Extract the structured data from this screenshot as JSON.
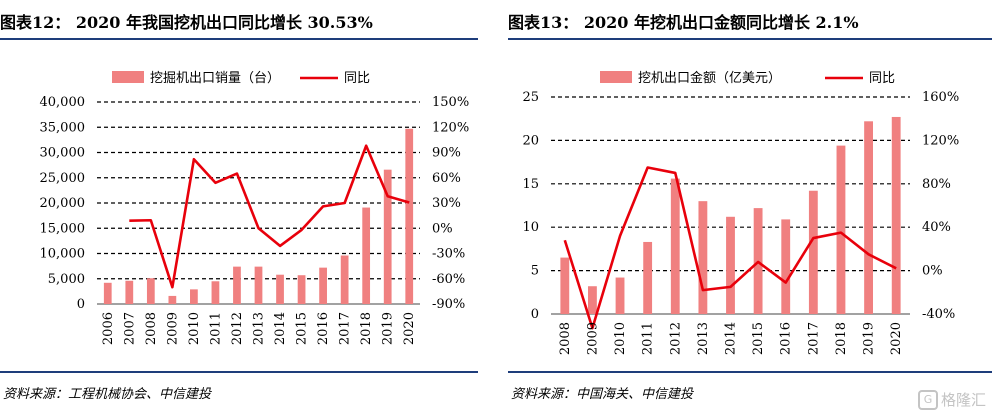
{
  "left": {
    "title": "图表12： 2020 年我国挖机出口同比增长 30.53%",
    "source": "资料来源：工程机械协会、中信建投",
    "chart_data": {
      "type": "bar",
      "categories": [
        "2006",
        "2007",
        "2008",
        "2009",
        "2010",
        "2011",
        "2012",
        "2013",
        "2014",
        "2015",
        "2016",
        "2017",
        "2018",
        "2019",
        "2020"
      ],
      "series": [
        {
          "name": "挖掘机出口销量（台）",
          "type": "bar",
          "axis": "left",
          "color": "#f08080",
          "values": [
            4200,
            4600,
            5100,
            1600,
            2900,
            4500,
            7400,
            7400,
            5800,
            5700,
            7200,
            9600,
            19100,
            26600,
            34700
          ]
        },
        {
          "name": "同比",
          "type": "line",
          "axis": "right",
          "color": "#e8000b",
          "values": [
            null,
            9,
            9.5,
            -70,
            82,
            54,
            65,
            0,
            -21,
            -2,
            26,
            30,
            98,
            38,
            30.53
          ]
        }
      ],
      "left_axis": {
        "min": 0,
        "max": 40000,
        "ticks": [
          "0",
          "5,000",
          "10,000",
          "15,000",
          "20,000",
          "25,000",
          "30,000",
          "35,000",
          "40,000"
        ]
      },
      "right_axis": {
        "min": -90,
        "max": 150,
        "ticks": [
          "-90%",
          "-60%",
          "-30%",
          "0%",
          "30%",
          "60%",
          "90%",
          "120%",
          "150%"
        ]
      },
      "grid": true,
      "legend": "top"
    }
  },
  "right": {
    "title": "图表13： 2020 年挖机出口金额同比增长 2.1%",
    "source": "资料来源：中国海关、中信建投",
    "chart_data": {
      "type": "bar",
      "categories": [
        "2008",
        "2009",
        "2010",
        "2011",
        "2012",
        "2013",
        "2014",
        "2015",
        "2016",
        "2017",
        "2018",
        "2019",
        "2020"
      ],
      "series": [
        {
          "name": "挖机出口金额（亿美元）",
          "type": "bar",
          "axis": "left",
          "color": "#f08080",
          "values": [
            6.5,
            3.2,
            4.2,
            8.3,
            15.6,
            13.0,
            11.2,
            12.2,
            10.9,
            14.2,
            19.4,
            22.2,
            22.7
          ]
        },
        {
          "name": "同比",
          "type": "line",
          "axis": "right",
          "color": "#e8000b",
          "values": [
            28,
            -53,
            32,
            95,
            90,
            -18,
            -15,
            8,
            -11,
            30,
            35,
            15,
            2.1
          ]
        }
      ],
      "left_axis": {
        "min": 0,
        "max": 25,
        "ticks": [
          "0",
          "5",
          "10",
          "15",
          "20",
          "25"
        ]
      },
      "right_axis": {
        "min": -40,
        "max": 160,
        "ticks": [
          "-40%",
          "0%",
          "40%",
          "80%",
          "120%",
          "160%"
        ]
      },
      "grid": true,
      "legend": "top"
    }
  },
  "watermark": {
    "icon": "G",
    "text": "格隆汇"
  }
}
